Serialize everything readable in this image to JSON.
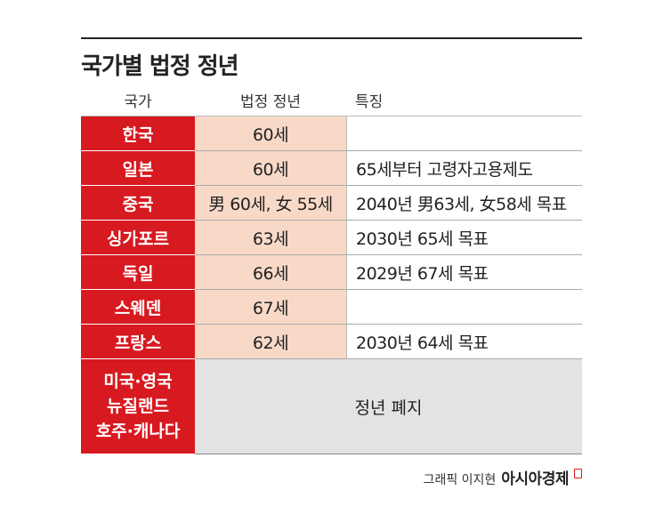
{
  "title": "국가별 법정 정년",
  "header": {
    "col1": "국가",
    "col2": "법정 정년",
    "col3": "특징"
  },
  "rows": [
    {
      "country": "한국",
      "age": "60세",
      "note": ""
    },
    {
      "country": "일본",
      "age": "60세",
      "note": "65세부터 고령자고용제도"
    },
    {
      "country": "중국",
      "age": "男 60세, 女 55세",
      "note": "2040년 男63세, 女58세 목표"
    },
    {
      "country": "싱가포르",
      "age": "63세",
      "note": "2030년 65세 목표"
    },
    {
      "country": "독일",
      "age": "66세",
      "note": "2029년 67세 목표"
    },
    {
      "country": "스웨덴",
      "age": "67세",
      "note": ""
    },
    {
      "country": "프랑스",
      "age": "62세",
      "note": "2030년 64세 목표"
    }
  ],
  "last_row": {
    "country_lines": [
      "미국·영국",
      "뉴질랜드",
      "호주·캐나다"
    ],
    "merged_text": "정년 폐지"
  },
  "credit": {
    "author": "그래픽 이지현",
    "brand": "아시아경제"
  },
  "colors": {
    "accent_red": "#d71920",
    "age_fill": "#f8d9c8",
    "merged_fill": "#e3e3e3"
  }
}
